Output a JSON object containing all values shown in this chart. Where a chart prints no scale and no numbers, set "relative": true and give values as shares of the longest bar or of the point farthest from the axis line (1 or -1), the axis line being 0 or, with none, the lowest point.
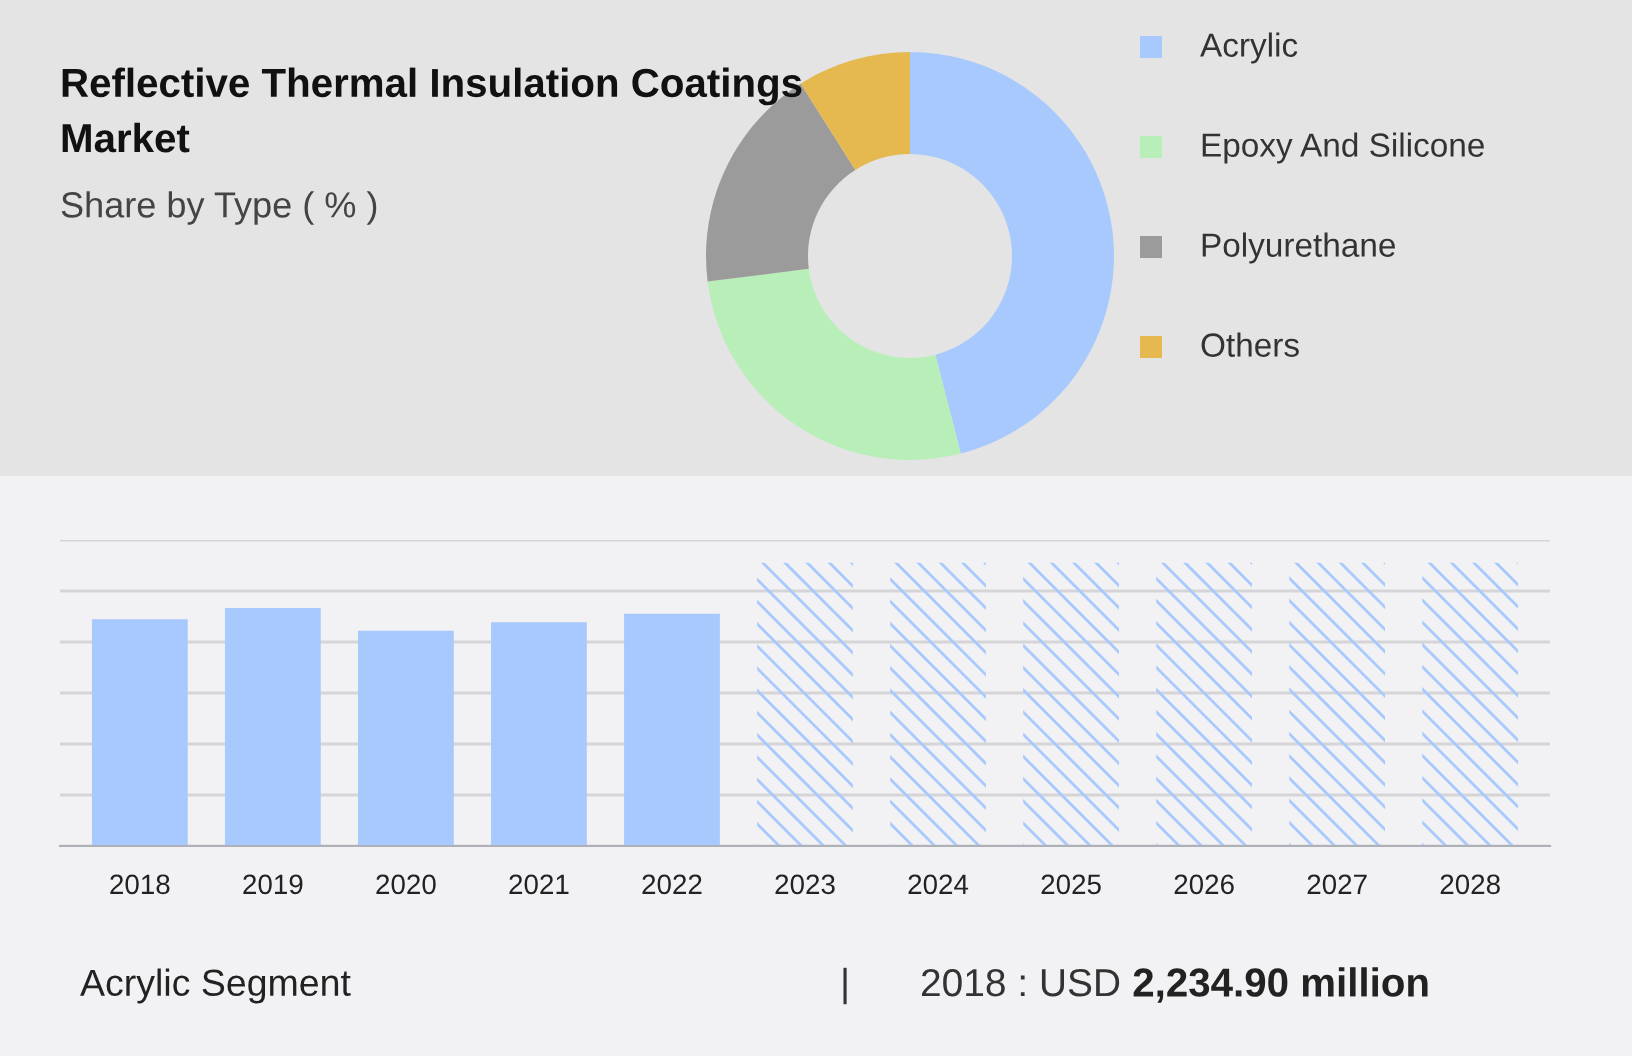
{
  "chart_data": [
    {
      "type": "donut",
      "title": "Reflective Thermal Insulation Coatings Market",
      "subtitle": "Share by Type ( % )",
      "categories": [
        "Acrylic",
        "Epoxy And Silicone",
        "Polyurethane",
        "Others"
      ],
      "values": [
        46,
        27,
        18,
        9
      ],
      "colors": [
        "#a8c9fd",
        "#b8efb9",
        "#9b9b9b",
        "#e5b94f"
      ],
      "legend": "right"
    },
    {
      "type": "bar",
      "relative": true,
      "grid": "y",
      "categories": [
        "2018",
        "2019",
        "2020",
        "2021",
        "2022",
        "2023",
        "2024",
        "2025",
        "2026",
        "2027",
        "2028"
      ],
      "series": [
        {
          "color": "#a8c9fd",
          "values": [
            0.8,
            0.84,
            0.76,
            0.79,
            0.82,
            null,
            null,
            null,
            null,
            null,
            null
          ]
        },
        {
          "color": "#a8c9fd",
          "values": [
            null,
            null,
            null,
            null,
            null,
            1,
            1,
            1,
            1,
            1,
            1
          ]
        }
      ],
      "annotations": [
        "Acrylic Segment",
        "|",
        "2018 : USD ",
        "2,234.90 million"
      ]
    }
  ]
}
